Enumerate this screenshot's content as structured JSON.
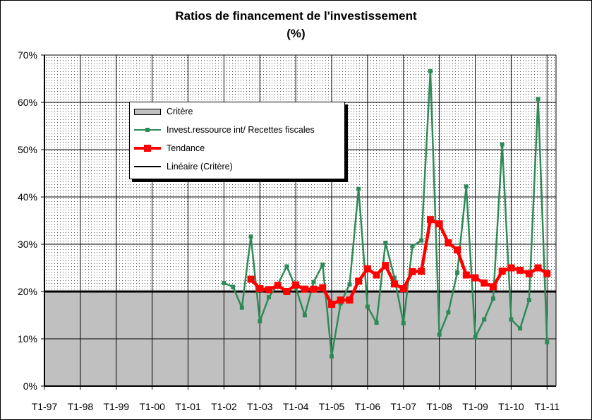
{
  "chart_data": {
    "type": "line",
    "title": "Ratios de financement de l'investissement",
    "subtitle": "(%)",
    "xlabel": "",
    "ylabel": "",
    "ylim": [
      0,
      70
    ],
    "yticks": [
      "0%",
      "10%",
      "20%",
      "30%",
      "40%",
      "50%",
      "60%",
      "70%"
    ],
    "x_tick_labels": [
      "T1-97",
      "T1-98",
      "T1-99",
      "T1-00",
      "T1-01",
      "T1-02",
      "T1-03",
      "T1-04",
      "T1-05",
      "T1-06",
      "T1-07",
      "T1-08",
      "T1-09",
      "T1-10",
      "T1-11"
    ],
    "grid": true,
    "legend_position": "upper-left-inside",
    "colors": {
      "green": "#2e8b57",
      "red": "#ff0000",
      "area": "#c0c0c0",
      "black": "#000000"
    },
    "critere": 20,
    "series": [
      {
        "name": "Invest.ressource  int/ Recettes fiscales",
        "start_index": 20,
        "values": [
          21.8,
          21.0,
          16.6,
          31.6,
          13.7,
          18.8,
          21.5,
          25.3,
          20.8,
          15.0,
          22.0,
          25.7,
          6.3,
          17.5,
          21.5,
          41.7,
          16.8,
          13.4,
          30.3,
          22.9,
          13.3,
          29.6,
          30.8,
          66.6,
          10.9,
          15.6,
          24.0,
          42.2,
          10.3,
          14.1,
          18.5,
          51.1,
          14.1,
          12.2,
          18.2,
          60.7,
          9.3
        ]
      },
      {
        "name": "Tendance",
        "start_index": 23,
        "values": [
          22.6,
          20.6,
          20.4,
          21.3,
          20.0,
          21.4,
          20.5,
          20.5,
          20.8,
          17.3,
          18.2,
          18.2,
          22.2,
          24.8,
          23.5,
          25.5,
          21.6,
          20.6,
          24.2,
          24.3,
          35.2,
          34.3,
          30.3,
          28.8,
          23.5,
          22.9,
          21.8,
          21.0,
          24.3,
          25.0,
          24.5,
          23.8,
          25.0,
          23.8
        ]
      }
    ],
    "legend": [
      {
        "key": "area",
        "label": "Critère"
      },
      {
        "key": "green",
        "label": "Invest.ressource  int/ Recettes fiscales"
      },
      {
        "key": "red",
        "label": "Tendance"
      },
      {
        "key": "black",
        "label": "Linéaire  (Critère)"
      }
    ]
  }
}
